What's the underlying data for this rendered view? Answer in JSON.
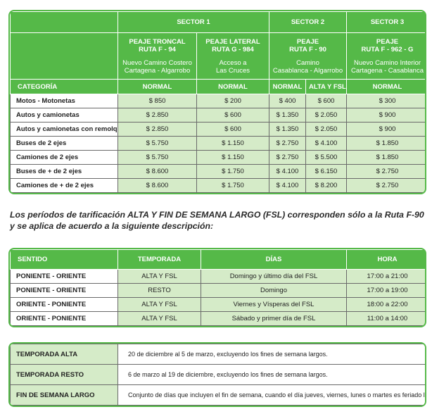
{
  "fare_table": {
    "sectors": [
      "SECTOR 1",
      "SECTOR 2",
      "SECTOR 3"
    ],
    "tolls": [
      {
        "title_lines": [
          "PEAJE TRONCAL",
          "RUTA F - 94"
        ],
        "route_lines": [
          "Nuevo Camino Costero",
          "Cartagena - Algarrobo"
        ]
      },
      {
        "title_lines": [
          "PEAJE LATERAL",
          "RUTA G - 984"
        ],
        "route_lines": [
          "Acceso a",
          "Las Cruces"
        ]
      },
      {
        "title_lines": [
          "PEAJE",
          "RUTA F - 90"
        ],
        "route_lines": [
          "Camino",
          "Casablanca - Algarrobo"
        ]
      },
      {
        "title_lines": [
          "PEAJE",
          "RUTA F - 962 - G"
        ],
        "route_lines": [
          "Nuevo Camino Interior",
          "Cartagena - Casablanca"
        ]
      }
    ],
    "category_header": "CATEGORÍA",
    "period_headers": [
      "NORMAL",
      "NORMAL",
      "NORMAL",
      "ALTA Y FSL",
      "NORMAL"
    ],
    "rows": [
      [
        "Motos - Motonetas",
        "$ 850",
        "$ 200",
        "$ 400",
        "$ 600",
        "$ 300"
      ],
      [
        "Autos y camionetas",
        "$ 2.850",
        "$ 600",
        "$ 1.350",
        "$ 2.050",
        "$ 900"
      ],
      [
        "Autos y camionetas con remolque",
        "$ 2.850",
        "$ 600",
        "$ 1.350",
        "$ 2.050",
        "$ 900"
      ],
      [
        "Buses de 2 ejes",
        "$ 5.750",
        "$ 1.150",
        "$ 2.750",
        "$ 4.100",
        "$ 1.850"
      ],
      [
        "Camiones de 2 ejes",
        "$ 5.750",
        "$ 1.150",
        "$ 2.750",
        "$ 5.500",
        "$ 1.850"
      ],
      [
        "Buses de + de 2 ejes",
        "$ 8.600",
        "$ 1.750",
        "$ 4.100",
        "$ 6.150",
        "$ 2.750"
      ],
      [
        "Camiones de + de 2 ejes",
        "$ 8.600",
        "$ 1.750",
        "$ 4.100",
        "$ 8.200",
        "$ 2.750"
      ]
    ]
  },
  "note": "Los períodos de tarificación ALTA Y FIN DE SEMANA LARGO (FSL) corresponden sólo a la Ruta F-90 y se aplica de acuerdo a la siguiente descripción:",
  "period_table": {
    "headers": [
      "SENTIDO",
      "TEMPORADA",
      "DÍAS",
      "HORA"
    ],
    "rows": [
      [
        "PONIENTE - ORIENTE",
        "ALTA Y FSL",
        "Domingo y último día del FSL",
        "17:00 a 21:00"
      ],
      [
        "PONIENTE - ORIENTE",
        "RESTO",
        "Domingo",
        "17:00 a 19:00"
      ],
      [
        "ORIENTE - PONIENTE",
        "ALTA Y FSL",
        "Viernes y Vísperas del FSL",
        "18:00 a 22:00"
      ],
      [
        "ORIENTE - PONIENTE",
        "ALTA Y FSL",
        "Sábado y primer día de FSL",
        "11:00 a 14:00"
      ]
    ]
  },
  "definitions": [
    {
      "term": "TEMPORADA ALTA",
      "description": "20 de diciembre al 5 de marzo, excluyendo los fines de semana largos."
    },
    {
      "term": "TEMPORADA RESTO",
      "description": "6 de marzo al 19 de diciembre, excluyendo los fines de semana largos."
    },
    {
      "term": "FIN DE SEMANA LARGO",
      "description": "Conjunto de días que incluyen el fin de semana, cuando el día jueves, viernes, lunes o martes es feriado legal."
    }
  ]
}
